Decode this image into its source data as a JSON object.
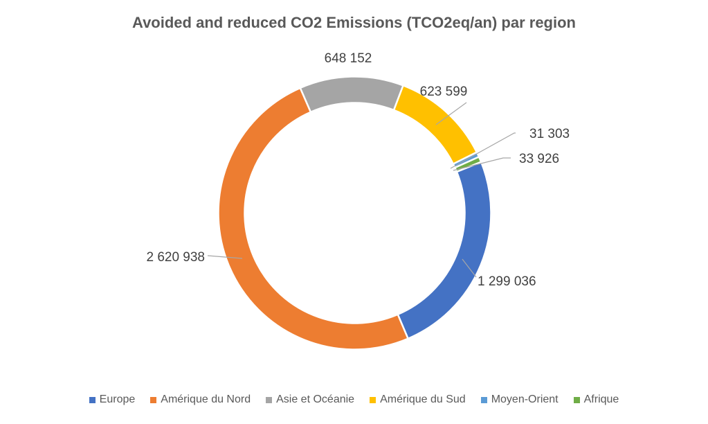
{
  "chart_data": {
    "type": "doughnut",
    "title": "Avoided and reduced CO2 Emissions (TCO2eq/an) par region",
    "categories": [
      "Europe",
      "Amérique du Nord",
      "Asie et Océanie",
      "Amérique du Sud",
      "Moyen-Orient",
      "Afrique"
    ],
    "values": [
      1299036,
      2620938,
      648152,
      623599,
      31303,
      33926
    ],
    "data_labels": [
      "1 299 036",
      "2 620 938",
      "648 152",
      "623 599",
      "31 303",
      "33 926"
    ],
    "colors": [
      "#4472C4",
      "#ED7D31",
      "#A5A5A5",
      "#FFC000",
      "#5B9BD5",
      "#70AD47"
    ],
    "legend": "bottom"
  }
}
